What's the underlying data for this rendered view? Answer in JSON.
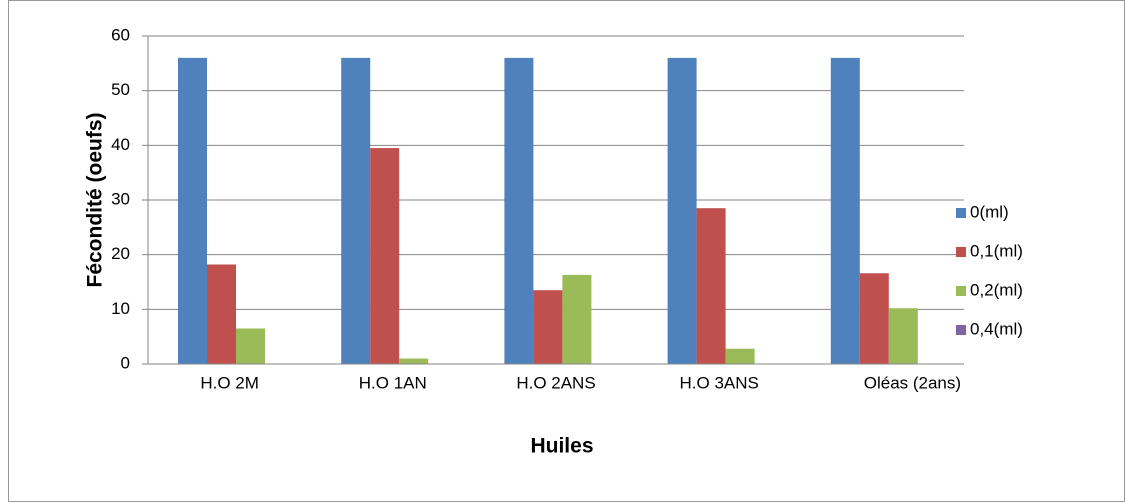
{
  "chart_data": {
    "type": "bar",
    "categories": [
      "H.O 2M",
      "H.O 1AN",
      "H.O 2ANS",
      "H.O 3ANS",
      "Oléas (2ans)"
    ],
    "series": [
      {
        "name": "0(ml)",
        "color": "#4f81bd",
        "values": [
          56,
          56,
          56,
          56,
          56
        ]
      },
      {
        "name": "0,1(ml)",
        "color": "#c0504d",
        "values": [
          18.2,
          39.5,
          13.5,
          28.5,
          16.6
        ]
      },
      {
        "name": "0,2(ml)",
        "color": "#9bbb59",
        "values": [
          6.5,
          1,
          16.3,
          2.8,
          10.2
        ]
      },
      {
        "name": "0,4(ml)",
        "color": "#8064a2",
        "values": [
          0,
          0,
          0,
          0,
          0
        ]
      }
    ],
    "ylabel": "Fécondité  (oeufs)",
    "xlabel": "Huiles",
    "ylim": [
      0,
      60
    ],
    "yticks": [
      0,
      10,
      20,
      30,
      40,
      50,
      60
    ],
    "grid": true,
    "legend": "right"
  }
}
